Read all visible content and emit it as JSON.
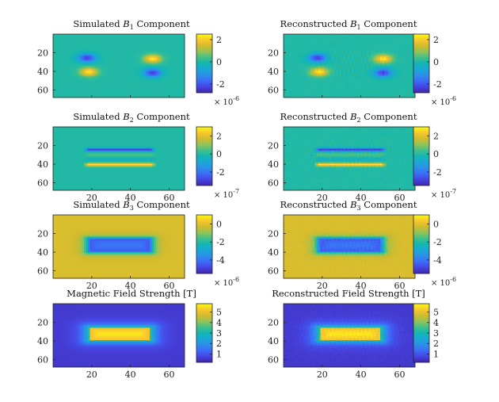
{
  "chart_data": [
    {
      "type": "heatmap",
      "title": "Simulated B1 Component",
      "title_parts": [
        "Simulated ",
        "B",
        "1",
        " Component"
      ],
      "field": "B1",
      "kind": "sim",
      "xlim": [
        0,
        68
      ],
      "ylim": [
        68,
        0
      ],
      "xticks": [
        20,
        40,
        60
      ],
      "yticks": [
        "20",
        "40",
        "60"
      ],
      "xtick_labels": [],
      "colorbar": {
        "ticks": [
          2,
          0,
          -2
        ],
        "tick_labels": [
          "2",
          "0",
          "-2"
        ],
        "range": [
          -2.8,
          2.5
        ],
        "exponent_base": "× 10",
        "exponent_power": "-6"
      }
    },
    {
      "type": "heatmap",
      "title": "Reconstructed B1 Component",
      "title_parts": [
        "Reconstructed ",
        "B",
        "1",
        " Component"
      ],
      "field": "B1",
      "kind": "rec",
      "xlim": [
        0,
        68
      ],
      "ylim": [
        68,
        0
      ],
      "xticks": [
        20,
        40,
        60
      ],
      "yticks": [
        "20",
        "40",
        "60"
      ],
      "xtick_labels": [],
      "colorbar": {
        "ticks": [
          2,
          0,
          -2
        ],
        "tick_labels": [
          "2",
          "0",
          "-2"
        ],
        "range": [
          -2.8,
          2.5
        ],
        "exponent_base": "× 10",
        "exponent_power": "-6"
      }
    },
    {
      "type": "heatmap",
      "title": "Simulated B2 Component",
      "title_parts": [
        "Simulated ",
        "B",
        "2",
        " Component"
      ],
      "field": "B2",
      "kind": "sim",
      "xlim": [
        0,
        68
      ],
      "ylim": [
        68,
        0
      ],
      "xticks": [
        20,
        40,
        60
      ],
      "yticks": [
        "20",
        "40",
        "60"
      ],
      "xtick_labels": [
        "20",
        "40",
        "60"
      ],
      "colorbar": {
        "ticks": [
          2,
          0,
          -2
        ],
        "tick_labels": [
          "2",
          "0",
          "-2"
        ],
        "range": [
          -3.5,
          3.0
        ],
        "exponent_base": "× 10",
        "exponent_power": "-7"
      }
    },
    {
      "type": "heatmap",
      "title": "Reconstructed B2 Component",
      "title_parts": [
        "Reconstructed ",
        "B",
        "2",
        " Component"
      ],
      "field": "B2",
      "kind": "rec",
      "xlim": [
        0,
        68
      ],
      "ylim": [
        68,
        0
      ],
      "xticks": [
        20,
        40,
        60
      ],
      "yticks": [
        "20",
        "40",
        "60"
      ],
      "xtick_labels": [
        "20",
        "40",
        "60"
      ],
      "colorbar": {
        "ticks": [
          2,
          0,
          -2
        ],
        "tick_labels": [
          "2",
          "0",
          "-2"
        ],
        "range": [
          -3.5,
          3.0
        ],
        "exponent_base": "× 10",
        "exponent_power": "-7"
      }
    },
    {
      "type": "heatmap",
      "title": "Simulated B3 Component",
      "title_parts": [
        "Simulated ",
        "B",
        "3",
        " Component"
      ],
      "field": "B3",
      "kind": "sim",
      "xlim": [
        0,
        68
      ],
      "ylim": [
        68,
        0
      ],
      "xticks": [
        20,
        40,
        60
      ],
      "yticks": [
        "20",
        "40",
        "60"
      ],
      "xtick_labels": [
        "20",
        "40",
        "60"
      ],
      "colorbar": {
        "ticks": [
          0,
          -2,
          -4
        ],
        "tick_labels": [
          "0",
          "-2",
          "-4"
        ],
        "range": [
          -5.5,
          1.0
        ],
        "exponent_base": "× 10",
        "exponent_power": "-6"
      }
    },
    {
      "type": "heatmap",
      "title": "Reconstructed B3 Component",
      "title_parts": [
        "Reconstructed ",
        "B",
        "3",
        " Component"
      ],
      "field": "B3",
      "kind": "rec",
      "xlim": [
        0,
        68
      ],
      "ylim": [
        68,
        0
      ],
      "xticks": [
        20,
        40,
        60
      ],
      "yticks": [
        "20",
        "40",
        "60"
      ],
      "xtick_labels": [
        "20",
        "40",
        "60"
      ],
      "colorbar": {
        "ticks": [
          0,
          -2,
          -4
        ],
        "tick_labels": [
          "0",
          "-2",
          "-4"
        ],
        "range": [
          -5.5,
          1.0
        ],
        "exponent_base": "× 10",
        "exponent_power": "-6"
      }
    },
    {
      "type": "heatmap",
      "title": "Magnetic Field Strength [T]",
      "title_parts": [
        "Magnetic Field Strength [T]",
        "",
        "",
        ""
      ],
      "field": "MAG",
      "kind": "sim",
      "xlim": [
        0,
        68
      ],
      "ylim": [
        68,
        0
      ],
      "xticks": [
        20,
        40,
        60
      ],
      "yticks": [
        "20",
        "40",
        "60"
      ],
      "xtick_labels": [
        "20",
        "40",
        "60"
      ],
      "colorbar": {
        "ticks": [
          5,
          4,
          3,
          2,
          1
        ],
        "tick_labels": [
          "5",
          "4",
          "3",
          "2",
          "1"
        ],
        "range": [
          0.2,
          5.8
        ],
        "exponent_base": "",
        "exponent_power": ""
      }
    },
    {
      "type": "heatmap",
      "title": "Reconstructed Field Strength [T]",
      "title_parts": [
        "Reconstructed Field Strength [T]",
        "",
        "",
        ""
      ],
      "field": "MAG",
      "kind": "rec",
      "xlim": [
        0,
        68
      ],
      "ylim": [
        68,
        0
      ],
      "xticks": [
        20,
        40,
        60
      ],
      "yticks": [
        "20",
        "40",
        "60"
      ],
      "xtick_labels": [
        "20",
        "40",
        "60"
      ],
      "colorbar": {
        "ticks": [
          5,
          4,
          3,
          2,
          1
        ],
        "tick_labels": [
          "5",
          "4",
          "3",
          "2",
          "1"
        ],
        "range": [
          0.2,
          5.8
        ],
        "exponent_base": "",
        "exponent_power": ""
      }
    }
  ],
  "colormap": [
    "#3e26a8",
    "#4644e2",
    "#3b6cf8",
    "#2d8fe8",
    "#1ba7d6",
    "#13b6b2",
    "#42c088",
    "#93c357",
    "#d1bb2e",
    "#f9c82f",
    "#f9fb0e"
  ]
}
